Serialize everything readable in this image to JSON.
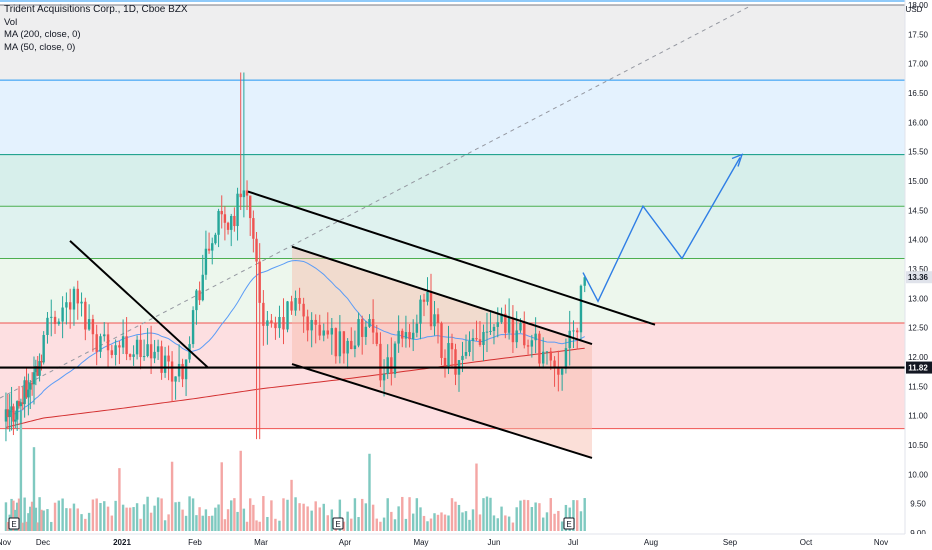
{
  "legend": {
    "title": "Trident Acquisitions Corp., 1D, Cboe BZX",
    "vol": "Vol",
    "ma200": "MA (200, close, 0)",
    "ma50": "MA (50, close, 0)"
  },
  "chart_data": {
    "type": "candlestick",
    "title": "Trident Acquisitions Corp., 1D, Cboe BZX",
    "currency": "USD",
    "y_axis": {
      "min": 9.0,
      "max": 18.0,
      "ticks": [
        "9.00",
        "9.50",
        "10.00",
        "10.50",
        "11.00",
        "11.50",
        "12.00",
        "12.50",
        "13.00",
        "13.50",
        "14.00",
        "14.50",
        "15.00",
        "15.50",
        "16.00",
        "16.50",
        "17.00",
        "17.50",
        "18.00"
      ]
    },
    "x_axis": {
      "ticks": [
        {
          "label": "Nov",
          "month_offset": 0
        },
        {
          "label": "Dec",
          "month_offset": 1
        },
        {
          "label": "2021",
          "month_offset": 2
        },
        {
          "label": "Feb",
          "month_offset": 3
        },
        {
          "label": "Mar",
          "month_offset": 4
        },
        {
          "label": "Apr",
          "month_offset": 5
        },
        {
          "label": "May",
          "month_offset": 6
        },
        {
          "label": "Jun",
          "month_offset": 7
        },
        {
          "label": "Jul",
          "month_offset": 8
        },
        {
          "label": "Aug",
          "month_offset": 9
        },
        {
          "label": "Sep",
          "month_offset": 10
        },
        {
          "label": "Oct",
          "month_offset": 11
        },
        {
          "label": "Nov",
          "month_offset": 12
        }
      ]
    },
    "price_labels": [
      {
        "value": 13.36,
        "text": "13.36",
        "bg": "#e0e3eb",
        "fg": "#131722"
      },
      {
        "value": 11.82,
        "text": "11.82",
        "bg": "#131722",
        "fg": "#ffffff"
      }
    ],
    "fib_levels": [
      11.82,
      10.78,
      12.58,
      13.68,
      14.57,
      15.45,
      16.72,
      18.0
    ],
    "fib_zones": [
      {
        "from": 10.78,
        "to": 12.58,
        "color": "#f23645",
        "opacity": 0.16
      },
      {
        "from": 12.58,
        "to": 13.68,
        "color": "#4caf50",
        "opacity": 0.1
      },
      {
        "from": 13.68,
        "to": 14.57,
        "color": "#089981",
        "opacity": 0.13
      },
      {
        "from": 14.57,
        "to": 15.45,
        "color": "#089981",
        "opacity": 0.16
      },
      {
        "from": 15.45,
        "to": 16.72,
        "color": "#2196f3",
        "opacity": 0.12
      },
      {
        "from": 16.72,
        "to": 18.0,
        "color": "#787b86",
        "opacity": 0.13
      }
    ],
    "horizontal_line": 11.82,
    "earnings_markers": [
      "E",
      "E",
      "E"
    ],
    "colors": {
      "up": "#26a69a",
      "down": "#ef5350",
      "up_volume": "#7fc9c0",
      "down_volume": "#f4a6a4",
      "ma50": "#5b9cf6",
      "ma200": "#d32f2f",
      "projection": "#2f7ee5"
    }
  }
}
